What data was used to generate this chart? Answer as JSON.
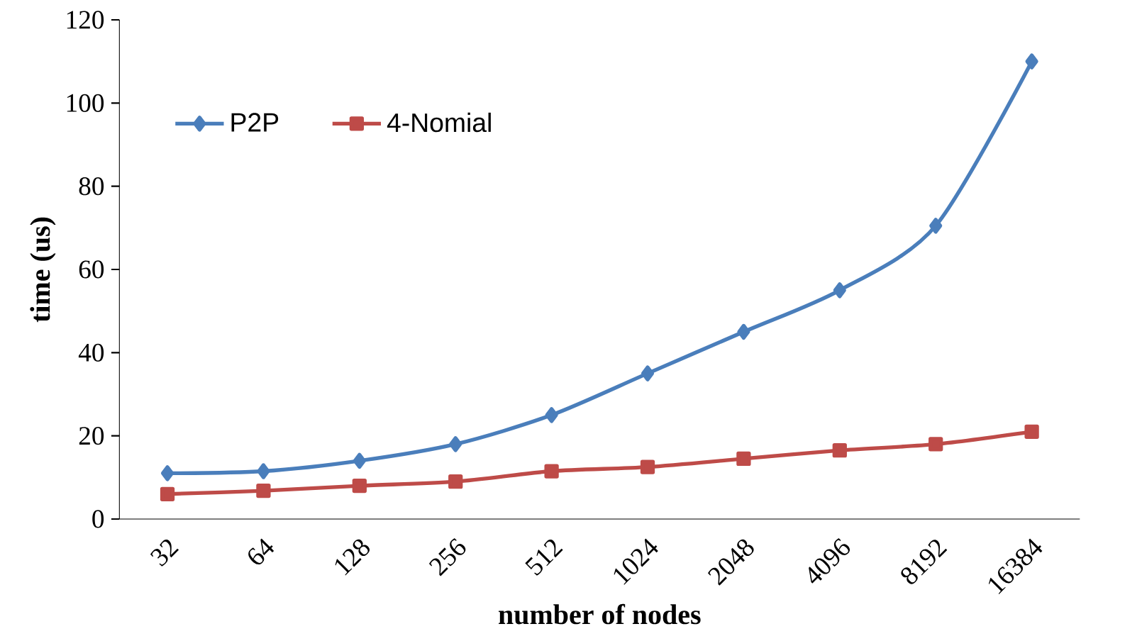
{
  "chart_data": {
    "type": "line",
    "xlabel": "number of nodes",
    "ylabel": "time (us)",
    "categories": [
      "32",
      "64",
      "128",
      "256",
      "512",
      "1024",
      "2048",
      "4096",
      "8192",
      "16384"
    ],
    "series": [
      {
        "name": "P2P",
        "color": "#4a7ebb",
        "marker": "diamond",
        "values": [
          11,
          11.5,
          14,
          18,
          25,
          35,
          45,
          55,
          70.5,
          110
        ]
      },
      {
        "name": "4-Nomial",
        "color": "#be4b48",
        "marker": "square",
        "values": [
          6,
          6.8,
          8,
          9,
          11.5,
          12.5,
          14.5,
          16.5,
          18,
          21
        ]
      }
    ],
    "ylim": [
      0,
      120
    ],
    "yticks": [
      0,
      20,
      40,
      60,
      80,
      100,
      120
    ],
    "grid": false,
    "legend": "top left",
    "line_style": "solid"
  }
}
